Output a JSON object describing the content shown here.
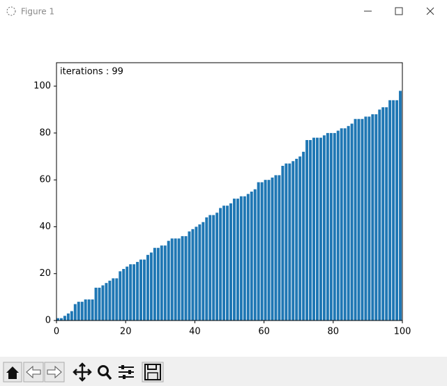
{
  "window_title": "Figure 1",
  "chart_data": {
    "type": "bar",
    "annotation": "iterations : 99",
    "color": "#1f77b4",
    "x": [
      0,
      1,
      2,
      3,
      4,
      5,
      6,
      7,
      8,
      9,
      10,
      11,
      12,
      13,
      14,
      15,
      16,
      17,
      18,
      19,
      20,
      21,
      22,
      23,
      24,
      25,
      26,
      27,
      28,
      29,
      30,
      31,
      32,
      33,
      34,
      35,
      36,
      37,
      38,
      39,
      40,
      41,
      42,
      43,
      44,
      45,
      46,
      47,
      48,
      49,
      50,
      51,
      52,
      53,
      54,
      55,
      56,
      57,
      58,
      59,
      60,
      61,
      62,
      63,
      64,
      65,
      66,
      67,
      68,
      69,
      70,
      71,
      72,
      73,
      74,
      75,
      76,
      77,
      78,
      79,
      80,
      81,
      82,
      83,
      84,
      85,
      86,
      87,
      88,
      89,
      90,
      91,
      92,
      93,
      94,
      95,
      96,
      97,
      98,
      99
    ],
    "values": [
      1,
      1,
      2,
      3,
      4,
      7,
      8,
      8,
      9,
      9,
      9,
      14,
      14,
      15,
      16,
      17,
      18,
      18,
      21,
      22,
      23,
      24,
      24,
      25,
      26,
      26,
      28,
      29,
      31,
      31,
      32,
      32,
      34,
      35,
      35,
      35,
      36,
      36,
      38,
      39,
      40,
      41,
      42,
      44,
      45,
      45,
      46,
      48,
      49,
      49,
      50,
      52,
      52,
      53,
      53,
      54,
      55,
      56,
      59,
      59,
      60,
      60,
      61,
      62,
      62,
      66,
      67,
      67,
      68,
      69,
      70,
      72,
      77,
      77,
      78,
      78,
      78,
      79,
      80,
      80,
      80,
      81,
      82,
      82,
      83,
      84,
      86,
      86,
      86,
      87,
      87,
      88,
      88,
      90,
      91,
      91,
      94,
      94,
      94,
      98
    ],
    "xlim": [
      0,
      100
    ],
    "ylim": [
      0,
      110
    ],
    "xticks": [
      0,
      20,
      40,
      60,
      80,
      100
    ],
    "yticks": [
      0,
      20,
      40,
      60,
      80,
      100
    ]
  }
}
